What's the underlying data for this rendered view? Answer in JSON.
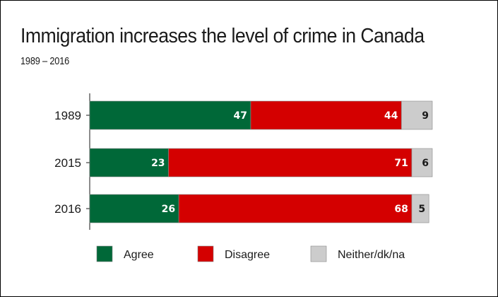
{
  "chart_data": {
    "type": "bar",
    "orientation": "horizontal",
    "stacked": true,
    "title": "Immigration increases the level of crime in Canada",
    "subtitle": "1989 – 2016",
    "categories": [
      "1989",
      "2015",
      "2016"
    ],
    "series": [
      {
        "name": "Agree",
        "values": [
          47,
          23,
          26
        ],
        "color": "#006838",
        "label_color": "#ffffff"
      },
      {
        "name": "Disagree",
        "values": [
          44,
          71,
          68
        ],
        "color": "#d40000",
        "label_color": "#ffffff"
      },
      {
        "name": "Neither/dk/na",
        "values": [
          9,
          6,
          5
        ],
        "color": "#cccccc",
        "label_color": "#1a1a1a"
      }
    ],
    "xlim": [
      0,
      100
    ],
    "grid": false,
    "legend_position": "bottom"
  }
}
